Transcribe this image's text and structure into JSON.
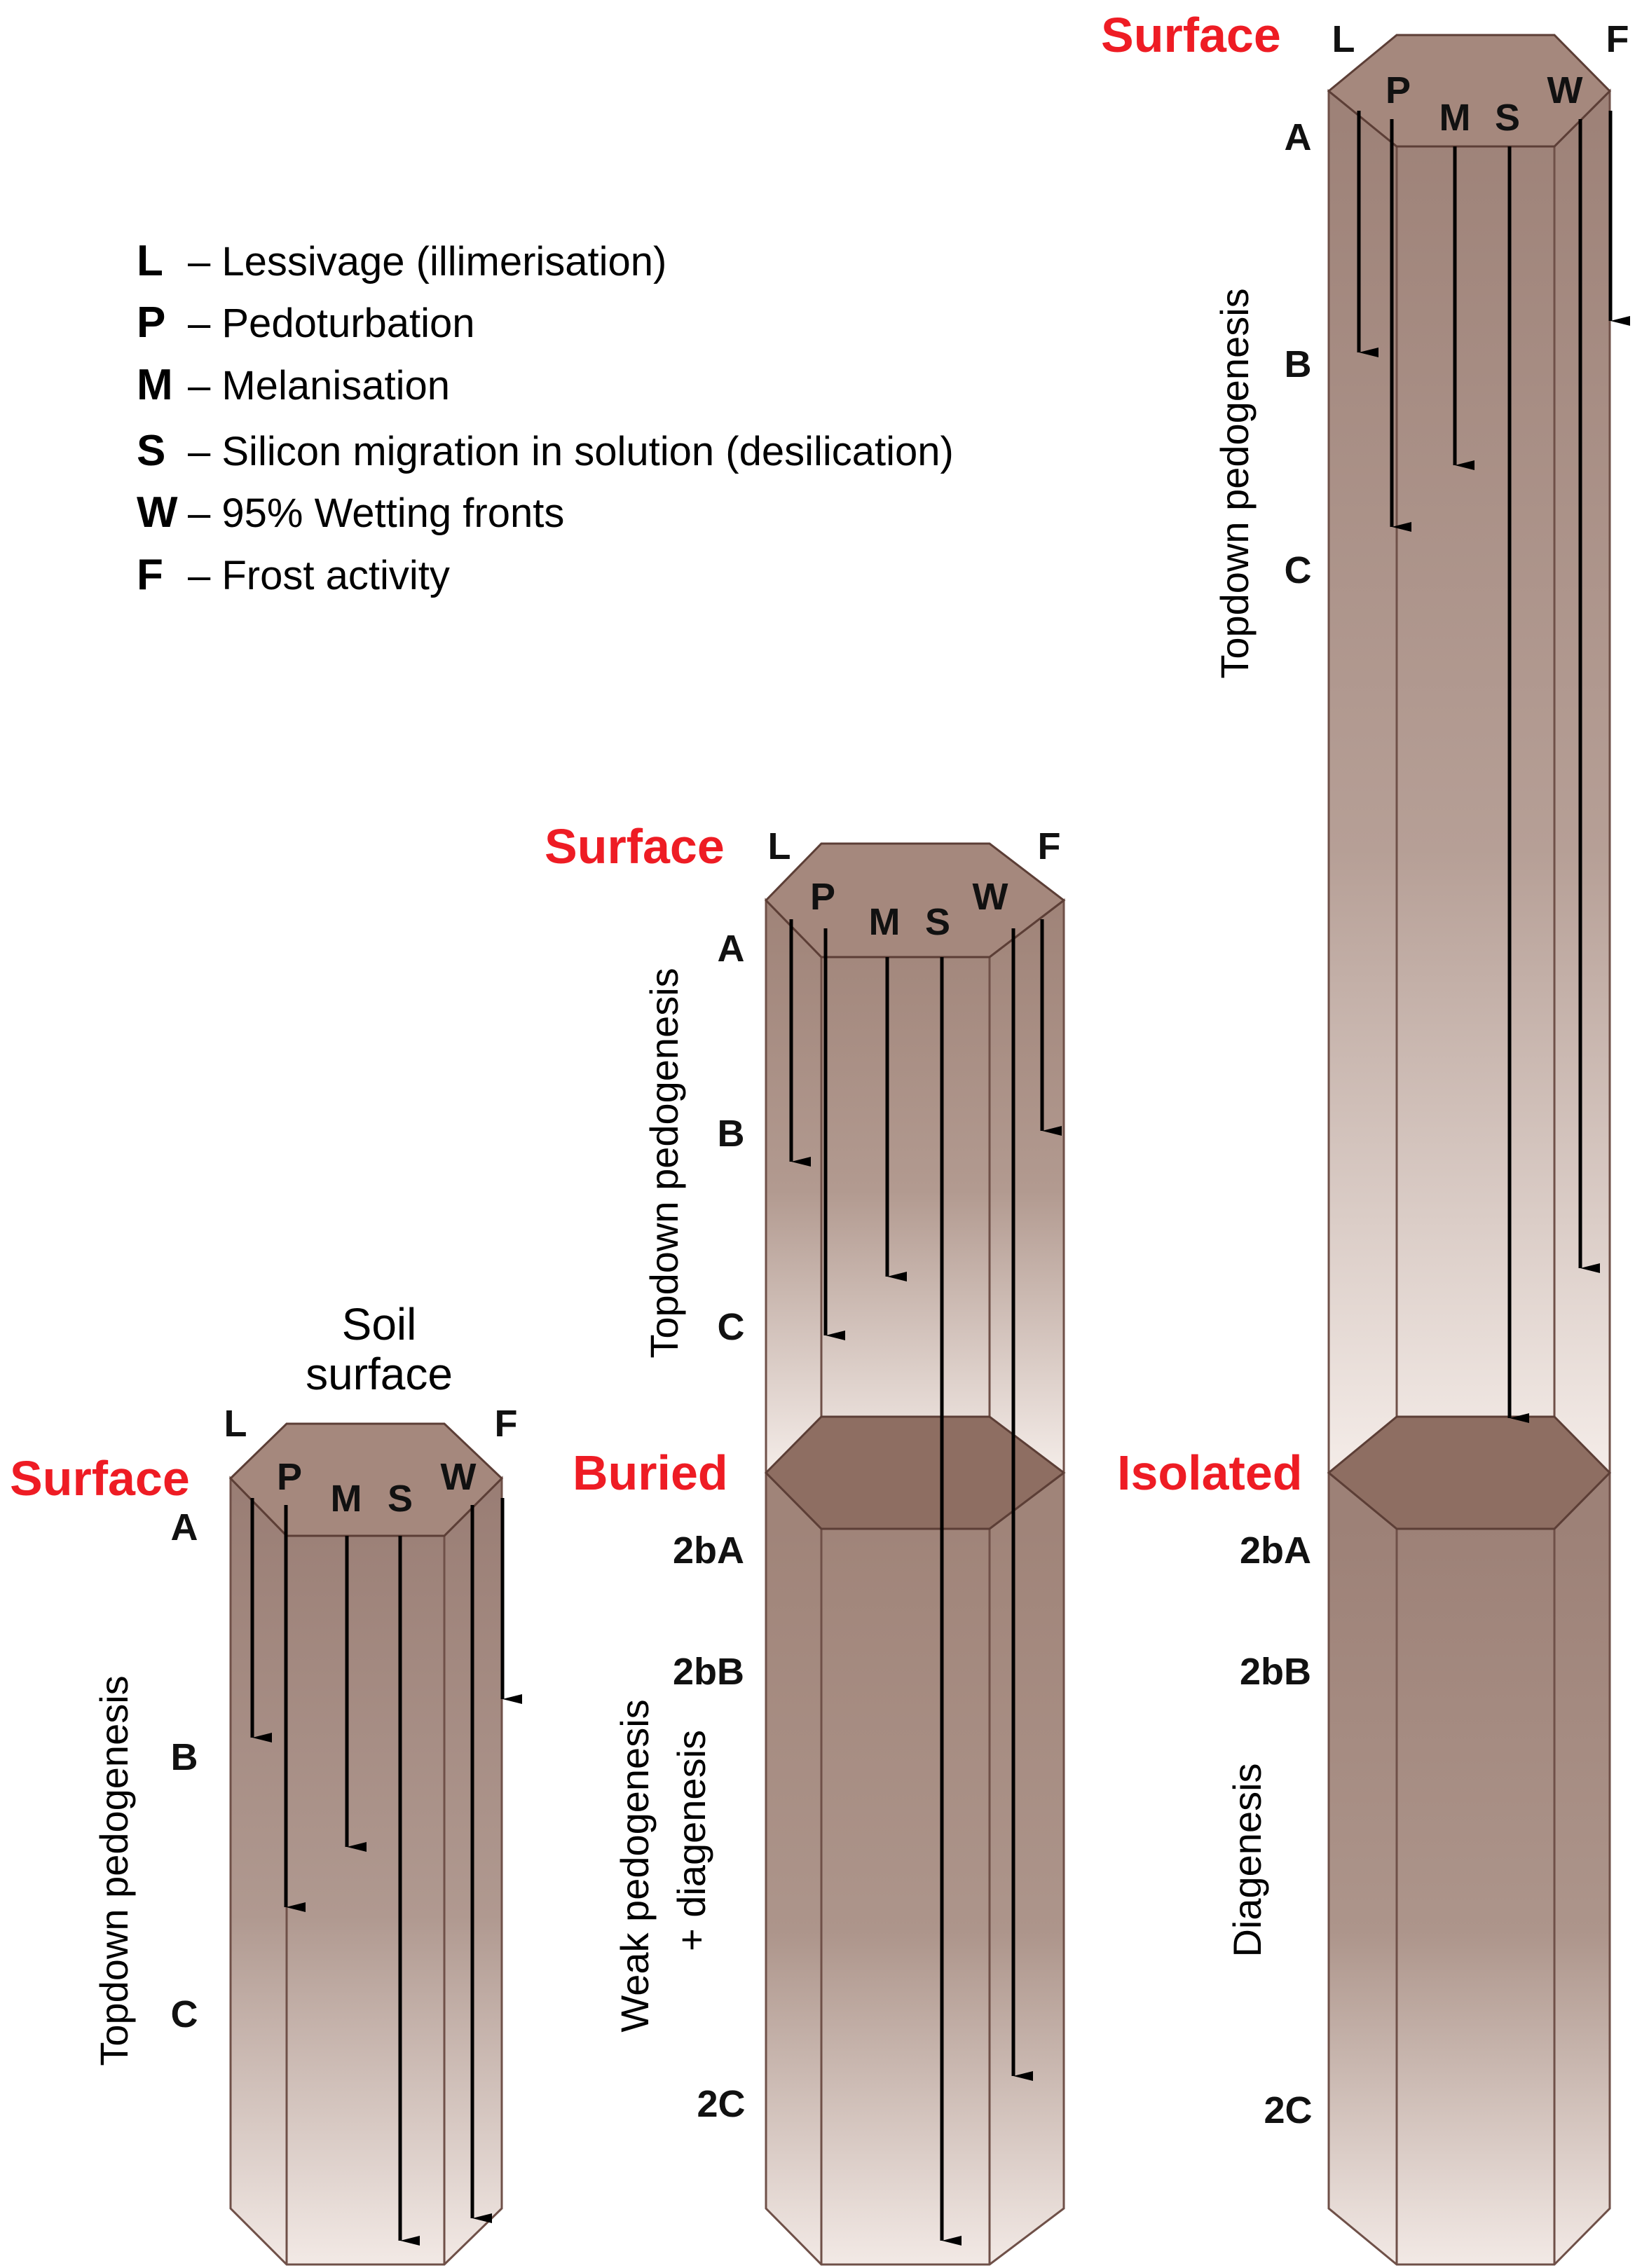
{
  "legend": [
    {
      "key": "L",
      "text": "– Lessivage (illimerisation)"
    },
    {
      "key": "P",
      "text": "– Pedoturbation"
    },
    {
      "key": "M",
      "text": "– Melanisation"
    },
    {
      "key": "S",
      "text": "– Silicon migration in solution (desilication)"
    },
    {
      "key": "W",
      "text": "– 95% Wetting fronts"
    },
    {
      "key": "F",
      "text": "– Frost activity"
    }
  ],
  "columns": {
    "first": {
      "top_caption_line1": "Soil",
      "top_caption_line2": "surface",
      "state": "Surface",
      "process_letters": [
        "L",
        "P",
        "M",
        "S",
        "W",
        "F"
      ],
      "horizons": [
        "A",
        "B",
        "C"
      ],
      "side_label": "Topdown pedogenesis"
    },
    "second": {
      "top_state": "Surface",
      "process_letters": [
        "L",
        "P",
        "M",
        "S",
        "W",
        "F"
      ],
      "upper_horizons": [
        "A",
        "B",
        "C"
      ],
      "upper_side_label": "Topdown pedogenesis",
      "lower_state": "Buried",
      "lower_horizons": [
        "2bA",
        "2bB",
        "2C"
      ],
      "lower_side_label_line1": "Weak pedogenesis",
      "lower_side_label_line2": "+ diagenesis"
    },
    "third": {
      "top_state": "Surface",
      "process_letters": [
        "L",
        "P",
        "M",
        "S",
        "W",
        "F"
      ],
      "upper_horizons": [
        "A",
        "B",
        "C"
      ],
      "upper_side_label": "Topdown pedogenesis",
      "lower_state": "Isolated",
      "lower_horizons": [
        "2bA",
        "2bB",
        "2C"
      ],
      "lower_side_label": "Diagenesis"
    }
  },
  "colors": {
    "state_label": "#ee1c24",
    "column_dark": "#9c8178",
    "column_light": "#f3ebe7",
    "hexagon_top": "#a5887d",
    "boundary_hexagon": "#8e6e62"
  }
}
